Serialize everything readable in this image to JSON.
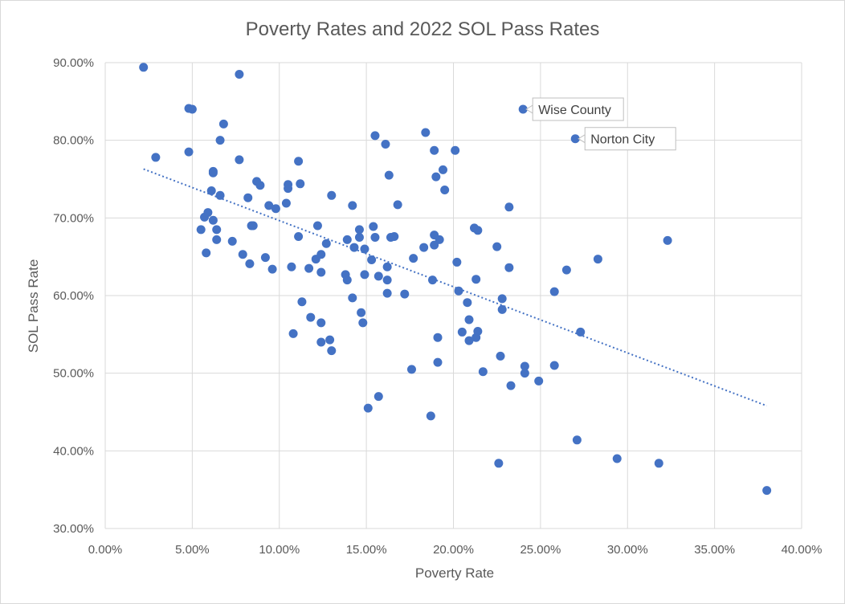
{
  "chart_data": {
    "type": "scatter",
    "title": "Poverty Rates and 2022 SOL Pass Rates",
    "xlabel": "Poverty Rate",
    "ylabel": "SOL Pass Rate",
    "xlim": [
      0,
      40
    ],
    "ylim": [
      30,
      90
    ],
    "x_ticks": [
      "0.00%",
      "5.00%",
      "10.00%",
      "15.00%",
      "20.00%",
      "25.00%",
      "30.00%",
      "35.00%",
      "40.00%"
    ],
    "y_ticks": [
      "30.00%",
      "40.00%",
      "50.00%",
      "60.00%",
      "70.00%",
      "80.00%",
      "90.00%"
    ],
    "grid": true,
    "marker_color": "#4472C4",
    "trendline": {
      "style": "dotted linear",
      "start": [
        2.2,
        76.3
      ],
      "end": [
        38.0,
        45.8
      ]
    },
    "annotations": [
      {
        "label": "Wise County",
        "x": 24.0,
        "y": 84.0
      },
      {
        "label": "Norton City",
        "x": 27.0,
        "y": 80.2
      }
    ],
    "points": [
      [
        2.2,
        89.4
      ],
      [
        7.7,
        88.5
      ],
      [
        4.8,
        84.1
      ],
      [
        5.0,
        84.0
      ],
      [
        6.8,
        82.1
      ],
      [
        6.6,
        80.0
      ],
      [
        2.9,
        77.8
      ],
      [
        4.8,
        78.5
      ],
      [
        7.7,
        77.5
      ],
      [
        11.1,
        77.3
      ],
      [
        6.2,
        76.0
      ],
      [
        6.2,
        75.8
      ],
      [
        8.7,
        74.7
      ],
      [
        8.9,
        74.2
      ],
      [
        10.5,
        74.3
      ],
      [
        11.2,
        74.4
      ],
      [
        10.5,
        73.8
      ],
      [
        6.1,
        73.5
      ],
      [
        6.6,
        72.9
      ],
      [
        8.2,
        72.6
      ],
      [
        13.0,
        72.9
      ],
      [
        10.4,
        71.9
      ],
      [
        9.4,
        71.6
      ],
      [
        9.8,
        71.2
      ],
      [
        5.9,
        70.7
      ],
      [
        5.7,
        70.1
      ],
      [
        6.2,
        69.7
      ],
      [
        8.4,
        69.0
      ],
      [
        8.5,
        69.0
      ],
      [
        12.2,
        69.0
      ],
      [
        5.5,
        68.5
      ],
      [
        6.4,
        68.5
      ],
      [
        11.1,
        67.6
      ],
      [
        6.4,
        67.2
      ],
      [
        7.3,
        67.0
      ],
      [
        12.7,
        66.7
      ],
      [
        5.8,
        65.5
      ],
      [
        7.9,
        65.3
      ],
      [
        9.2,
        64.9
      ],
      [
        12.1,
        64.7
      ],
      [
        12.4,
        65.3
      ],
      [
        8.3,
        64.1
      ],
      [
        9.6,
        63.4
      ],
      [
        10.7,
        63.7
      ],
      [
        11.7,
        63.5
      ],
      [
        12.4,
        63.0
      ],
      [
        14.2,
        71.6
      ],
      [
        14.6,
        68.5
      ],
      [
        14.6,
        67.5
      ],
      [
        13.9,
        67.2
      ],
      [
        14.3,
        66.2
      ],
      [
        15.4,
        68.9
      ],
      [
        15.5,
        67.5
      ],
      [
        14.9,
        66.0
      ],
      [
        15.3,
        64.6
      ],
      [
        13.8,
        62.7
      ],
      [
        13.9,
        62.0
      ],
      [
        14.9,
        62.7
      ],
      [
        15.7,
        62.5
      ],
      [
        16.2,
        63.7
      ],
      [
        16.2,
        62.0
      ],
      [
        16.2,
        60.3
      ],
      [
        14.2,
        59.7
      ],
      [
        15.5,
        80.6
      ],
      [
        16.1,
        79.5
      ],
      [
        16.3,
        75.5
      ],
      [
        16.8,
        71.7
      ],
      [
        16.4,
        67.5
      ],
      [
        16.6,
        67.6
      ],
      [
        17.7,
        64.8
      ],
      [
        17.2,
        60.2
      ],
      [
        18.4,
        81.0
      ],
      [
        18.9,
        78.7
      ],
      [
        19.4,
        76.2
      ],
      [
        19.0,
        75.3
      ],
      [
        19.5,
        73.6
      ],
      [
        20.1,
        78.7
      ],
      [
        18.3,
        66.2
      ],
      [
        18.9,
        67.8
      ],
      [
        19.2,
        67.2
      ],
      [
        18.9,
        66.5
      ],
      [
        18.8,
        62.0
      ],
      [
        20.2,
        64.3
      ],
      [
        20.3,
        60.6
      ],
      [
        11.3,
        59.2
      ],
      [
        11.8,
        57.2
      ],
      [
        12.4,
        56.5
      ],
      [
        14.7,
        57.8
      ],
      [
        14.8,
        56.5
      ],
      [
        10.8,
        55.1
      ],
      [
        12.4,
        54.0
      ],
      [
        12.9,
        54.3
      ],
      [
        13.0,
        52.9
      ],
      [
        17.6,
        50.5
      ],
      [
        19.1,
        54.6
      ],
      [
        19.1,
        51.4
      ],
      [
        15.1,
        45.5
      ],
      [
        15.7,
        47.0
      ],
      [
        18.7,
        44.5
      ],
      [
        21.2,
        68.7
      ],
      [
        21.4,
        68.4
      ],
      [
        21.3,
        62.1
      ],
      [
        23.2,
        71.4
      ],
      [
        22.5,
        66.3
      ],
      [
        23.2,
        63.6
      ],
      [
        20.8,
        59.1
      ],
      [
        20.9,
        56.9
      ],
      [
        20.5,
        55.3
      ],
      [
        20.9,
        54.2
      ],
      [
        21.3,
        54.6
      ],
      [
        21.4,
        55.4
      ],
      [
        22.8,
        59.6
      ],
      [
        22.8,
        58.2
      ],
      [
        22.7,
        52.2
      ],
      [
        21.7,
        50.2
      ],
      [
        23.3,
        48.4
      ],
      [
        24.1,
        50.9
      ],
      [
        24.1,
        50.0
      ],
      [
        24.9,
        49.0
      ],
      [
        22.6,
        38.4
      ],
      [
        26.5,
        63.3
      ],
      [
        25.8,
        60.5
      ],
      [
        28.3,
        64.7
      ],
      [
        27.3,
        55.3
      ],
      [
        25.8,
        51.0
      ],
      [
        27.1,
        41.4
      ],
      [
        29.4,
        39.0
      ],
      [
        31.8,
        38.4
      ],
      [
        32.3,
        67.1
      ],
      [
        38.0,
        34.9
      ]
    ]
  }
}
